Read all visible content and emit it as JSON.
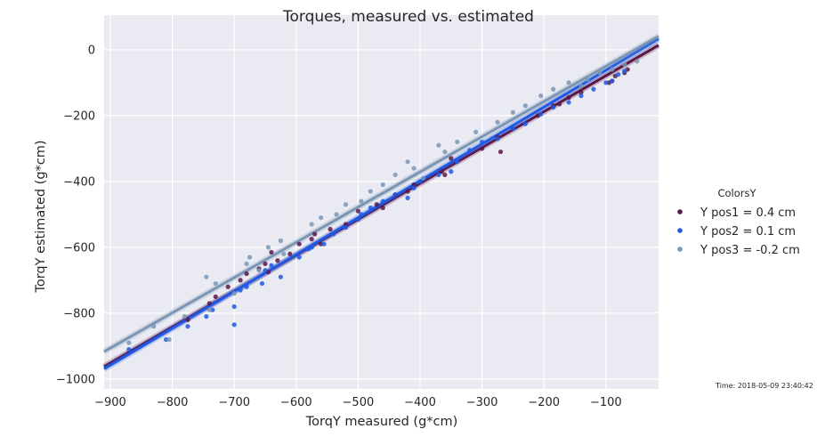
{
  "chart_data": {
    "type": "scatter",
    "title": "Torques, measured vs. estimated",
    "xlabel": "TorqY measured (g*cm)",
    "ylabel": "TorqY estimated (g*cm)",
    "xlim": [
      -910,
      -15
    ],
    "ylim": [
      -1030,
      105
    ],
    "xticks": [
      -900,
      -800,
      -700,
      -600,
      -500,
      -400,
      -300,
      -200,
      -100
    ],
    "yticks": [
      0,
      -200,
      -400,
      -600,
      -800,
      -1000
    ],
    "grid": true,
    "legend": {
      "title": "ColorsY",
      "placement": "right"
    },
    "series": [
      {
        "name": "Y pos1 = 0.4 cm",
        "color": "#5a1848",
        "fit": {
          "slope": 1.09,
          "intercept": 30
        },
        "x": [
          -775,
          -740,
          -730,
          -710,
          -690,
          -680,
          -660,
          -650,
          -645,
          -640,
          -630,
          -610,
          -595,
          -575,
          -570,
          -560,
          -545,
          -520,
          -500,
          -470,
          -460,
          -440,
          -420,
          -410,
          -365,
          -360,
          -350,
          -300,
          -275,
          -270,
          -250,
          -210,
          -185,
          -175,
          -160,
          -140,
          -95,
          -90,
          -85,
          -70,
          -65
        ],
        "y": [
          -820,
          -770,
          -750,
          -720,
          -700,
          -680,
          -665,
          -650,
          -675,
          -615,
          -640,
          -620,
          -590,
          -575,
          -560,
          -590,
          -545,
          -530,
          -490,
          -470,
          -480,
          -440,
          -430,
          -410,
          -370,
          -380,
          -330,
          -300,
          -265,
          -310,
          -240,
          -200,
          -170,
          -165,
          -145,
          -130,
          -100,
          -95,
          -80,
          -70,
          -60
        ]
      },
      {
        "name": "Y pos2 = 0.1 cm",
        "color": "#1f5ae6",
        "fit": {
          "slope": 1.12,
          "intercept": 50
        },
        "x": [
          -870,
          -810,
          -775,
          -745,
          -735,
          -700,
          -700,
          -690,
          -680,
          -655,
          -650,
          -640,
          -625,
          -595,
          -580,
          -575,
          -555,
          -540,
          -520,
          -500,
          -495,
          -480,
          -460,
          -440,
          -420,
          -410,
          -400,
          -370,
          -350,
          -340,
          -320,
          -300,
          -275,
          -250,
          -230,
          -205,
          -185,
          -160,
          -140,
          -120,
          -100,
          -90,
          -80,
          -70
        ],
        "y": [
          -910,
          -880,
          -840,
          -810,
          -790,
          -835,
          -780,
          -730,
          -720,
          -710,
          -670,
          -655,
          -690,
          -630,
          -605,
          -600,
          -590,
          -560,
          -540,
          -515,
          -500,
          -480,
          -460,
          -440,
          -450,
          -420,
          -400,
          -380,
          -370,
          -340,
          -305,
          -280,
          -270,
          -240,
          -225,
          -195,
          -175,
          -160,
          -140,
          -120,
          -100,
          -95,
          -75,
          -65
        ]
      },
      {
        "name": "Y pos3 = -0.2 cm",
        "color": "#7a96b4",
        "fit": {
          "slope": 1.07,
          "intercept": 57
        },
        "x": [
          -870,
          -830,
          -805,
          -780,
          -745,
          -740,
          -730,
          -700,
          -680,
          -675,
          -660,
          -645,
          -625,
          -620,
          -575,
          -560,
          -535,
          -520,
          -495,
          -480,
          -460,
          -440,
          -420,
          -410,
          -395,
          -370,
          -360,
          -340,
          -310,
          -275,
          -250,
          -230,
          -205,
          -185,
          -160,
          -140,
          -130,
          -110,
          -90,
          -70,
          -50
        ],
        "y": [
          -890,
          -840,
          -880,
          -810,
          -690,
          -790,
          -710,
          -740,
          -650,
          -630,
          -670,
          -600,
          -580,
          -620,
          -530,
          -510,
          -500,
          -470,
          -460,
          -430,
          -410,
          -380,
          -340,
          -360,
          -390,
          -290,
          -310,
          -280,
          -250,
          -220,
          -190,
          -170,
          -140,
          -120,
          -100,
          -110,
          -90,
          -70,
          -60,
          -45,
          -35
        ]
      }
    ]
  },
  "footnote": "Time: 2018-05-09 23:40:42"
}
